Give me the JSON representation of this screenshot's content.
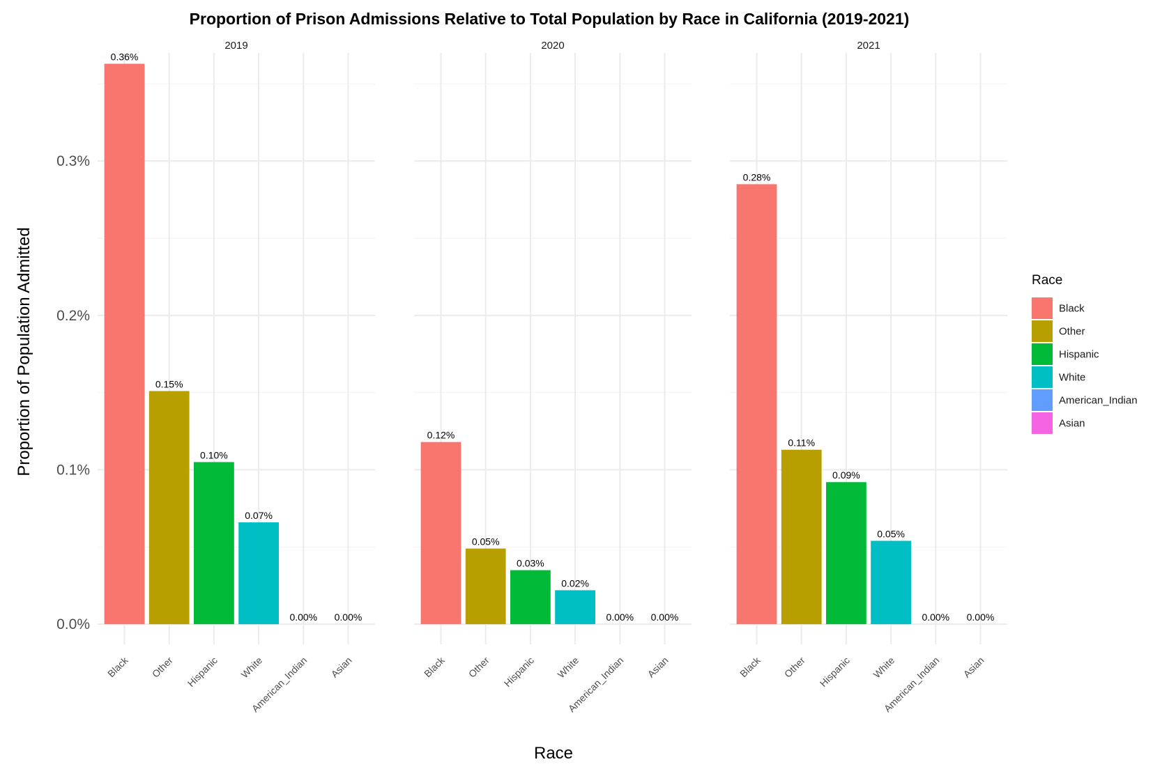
{
  "chart_data": {
    "type": "bar",
    "title": "Proportion of Prison Admissions Relative to Total Population by Race in California (2019-2021)",
    "xlabel": "Race",
    "ylabel": "Proportion of Population Admitted",
    "ylim": [
      -0.00013,
      0.0037
    ],
    "y_ticks": [
      0.0,
      0.001,
      0.002,
      0.003
    ],
    "y_tick_labels": [
      "0.0%",
      "0.1%",
      "0.2%",
      "0.3%"
    ],
    "grid": true,
    "legend": {
      "title": "Race",
      "position": "right",
      "entries": [
        "Black",
        "Other",
        "Hispanic",
        "White",
        "American_Indian",
        "Asian"
      ]
    },
    "categories": [
      "Black",
      "Other",
      "Hispanic",
      "White",
      "American_Indian",
      "Asian"
    ],
    "colors": {
      "Black": "#F8766D",
      "Other": "#B79F00",
      "Hispanic": "#00BA38",
      "White": "#00BFC4",
      "American_Indian": "#619CFF",
      "Asian": "#F564E3"
    },
    "facets": [
      {
        "label": "2019",
        "values": [
          0.00363,
          0.00151,
          0.00105,
          0.00066,
          0.0,
          0.0
        ],
        "data_labels": [
          "0.36%",
          "0.15%",
          "0.10%",
          "0.07%",
          "0.00%",
          "0.00%"
        ]
      },
      {
        "label": "2020",
        "values": [
          0.00118,
          0.00049,
          0.00035,
          0.00022,
          0.0,
          0.0
        ],
        "data_labels": [
          "0.12%",
          "0.05%",
          "0.03%",
          "0.02%",
          "0.00%",
          "0.00%"
        ]
      },
      {
        "label": "2021",
        "values": [
          0.00285,
          0.00113,
          0.00092,
          0.00054,
          0.0,
          0.0
        ],
        "data_labels": [
          "0.28%",
          "0.11%",
          "0.09%",
          "0.05%",
          "0.00%",
          "0.00%"
        ]
      }
    ]
  }
}
